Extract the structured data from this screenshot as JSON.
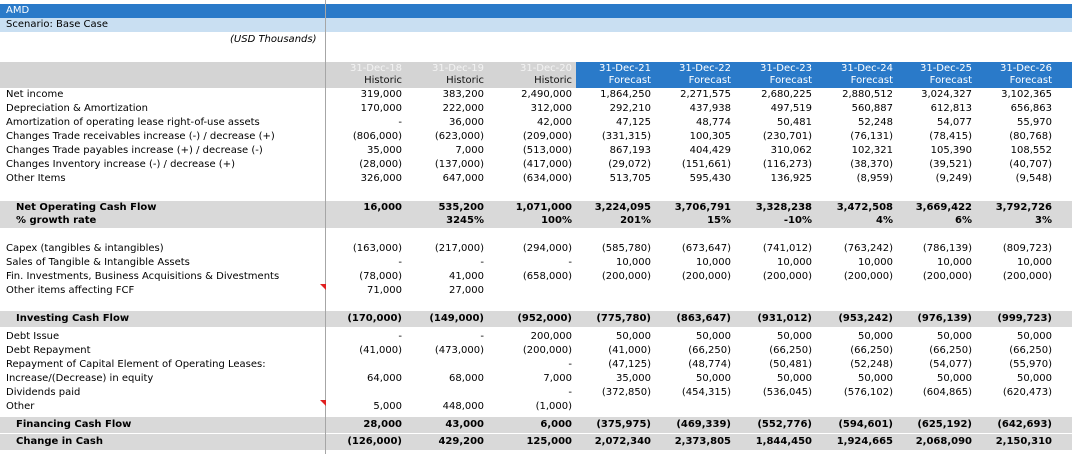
{
  "sheet": {
    "company": "AMD",
    "scenario": "Scenario: Base Case",
    "units": "(USD Thousands)"
  },
  "colors": {
    "title_bar": "#2a7ac9",
    "scenario_bar": "#c9dff2",
    "header_gray": "#d4d4d4",
    "forecast_blue": "#2a7ac9",
    "historic_text": "#f3f3f3",
    "total_band": "#d9d9d9",
    "comment_flag": "#e02020"
  },
  "columns": [
    {
      "date": "31-Dec-18",
      "kind": "Historic"
    },
    {
      "date": "31-Dec-19",
      "kind": "Historic"
    },
    {
      "date": "31-Dec-20",
      "kind": "Historic"
    },
    {
      "date": "31-Dec-21",
      "kind": "Forecast"
    },
    {
      "date": "31-Dec-22",
      "kind": "Forecast"
    },
    {
      "date": "31-Dec-23",
      "kind": "Forecast"
    },
    {
      "date": "31-Dec-24",
      "kind": "Forecast"
    },
    {
      "date": "31-Dec-25",
      "kind": "Forecast"
    },
    {
      "date": "31-Dec-26",
      "kind": "Forecast"
    }
  ],
  "rows": [
    {
      "label": "Net income",
      "values": [
        "319,000",
        "383,200",
        "2,490,000",
        "1,864,250",
        "2,271,575",
        "2,680,225",
        "2,880,512",
        "3,024,327",
        "3,102,365"
      ]
    },
    {
      "label": "Depreciation & Amortization",
      "values": [
        "170,000",
        "222,000",
        "312,000",
        "292,210",
        "437,938",
        "497,519",
        "560,887",
        "612,813",
        "656,863"
      ]
    },
    {
      "label": "Amortization of operating lease right-of-use assets",
      "values": [
        "-",
        "36,000",
        "42,000",
        "47,125",
        "48,774",
        "50,481",
        "52,248",
        "54,077",
        "55,970"
      ]
    },
    {
      "label": "Changes Trade receivables increase (-) / decrease (+)",
      "values": [
        "(806,000)",
        "(623,000)",
        "(209,000)",
        "(331,315)",
        "100,305",
        "(230,701)",
        "(76,131)",
        "(78,415)",
        "(80,768)"
      ]
    },
    {
      "label": "Changes Trade payables increase (+) / decrease (-)",
      "values": [
        "35,000",
        "7,000",
        "(513,000)",
        "867,193",
        "404,429",
        "310,062",
        "102,321",
        "105,390",
        "108,552"
      ]
    },
    {
      "label": "Changes Inventory increase (-) / decrease (+)",
      "values": [
        "(28,000)",
        "(137,000)",
        "(417,000)",
        "(29,072)",
        "(151,661)",
        "(116,273)",
        "(38,370)",
        "(39,521)",
        "(40,707)"
      ]
    },
    {
      "label": "Other Items",
      "values": [
        "326,000",
        "647,000",
        "(634,000)",
        "513,705",
        "595,430",
        "136,925",
        "(8,959)",
        "(9,249)",
        "(9,548)"
      ]
    },
    {
      "label": "Net Operating Cash Flow",
      "bold": true,
      "band": true,
      "values": [
        "16,000",
        "535,200",
        "1,071,000",
        "3,224,095",
        "3,706,791",
        "3,328,238",
        "3,472,508",
        "3,669,422",
        "3,792,726"
      ]
    },
    {
      "label": "% growth rate",
      "bold": true,
      "band": true,
      "values": [
        "",
        "3245%",
        "100%",
        "201%",
        "15%",
        "-10%",
        "4%",
        "6%",
        "3%"
      ]
    },
    {
      "label": "Capex (tangibles & intangibles)",
      "values": [
        "(163,000)",
        "(217,000)",
        "(294,000)",
        "(585,780)",
        "(673,647)",
        "(741,012)",
        "(763,242)",
        "(786,139)",
        "(809,723)"
      ]
    },
    {
      "label": "Sales of Tangible & Intangible Assets",
      "values": [
        "-",
        "-",
        "-",
        "10,000",
        "10,000",
        "10,000",
        "10,000",
        "10,000",
        "10,000"
      ]
    },
    {
      "label": "Fin. Investments, Business Acquisitions & Divestments",
      "values": [
        "(78,000)",
        "41,000",
        "(658,000)",
        "(200,000)",
        "(200,000)",
        "(200,000)",
        "(200,000)",
        "(200,000)",
        "(200,000)"
      ]
    },
    {
      "label": "Other items affecting FCF",
      "values": [
        "71,000",
        "27,000",
        "",
        "",
        "",
        "",
        "",
        "",
        ""
      ]
    },
    {
      "label": "Investing Cash Flow",
      "bold": true,
      "band": true,
      "values": [
        "(170,000)",
        "(149,000)",
        "(952,000)",
        "(775,780)",
        "(863,647)",
        "(931,012)",
        "(953,242)",
        "(976,139)",
        "(999,723)"
      ]
    },
    {
      "label": "Debt Issue",
      "values": [
        "-",
        "-",
        "200,000",
        "50,000",
        "50,000",
        "50,000",
        "50,000",
        "50,000",
        "50,000"
      ]
    },
    {
      "label": "Debt Repayment",
      "values": [
        "(41,000)",
        "(473,000)",
        "(200,000)",
        "(41,000)",
        "(66,250)",
        "(66,250)",
        "(66,250)",
        "(66,250)",
        "(66,250)"
      ]
    },
    {
      "label": "Repayment of Capital Element of Operating Leases:",
      "values": [
        "",
        "",
        "-",
        "(47,125)",
        "(48,774)",
        "(50,481)",
        "(52,248)",
        "(54,077)",
        "(55,970)"
      ]
    },
    {
      "label": "Increase/(Decrease) in equity",
      "values": [
        "64,000",
        "68,000",
        "7,000",
        "35,000",
        "50,000",
        "50,000",
        "50,000",
        "50,000",
        "50,000"
      ]
    },
    {
      "label": "Dividends paid",
      "values": [
        "",
        "",
        "-",
        "(372,850)",
        "(454,315)",
        "(536,045)",
        "(576,102)",
        "(604,865)",
        "(620,473)"
      ]
    },
    {
      "label": "Other",
      "values": [
        "5,000",
        "448,000",
        "(1,000)",
        "",
        "",
        "",
        "",
        "",
        ""
      ]
    },
    {
      "label": "Financing Cash Flow",
      "bold": true,
      "band": true,
      "values": [
        "28,000",
        "43,000",
        "6,000",
        "(375,975)",
        "(469,339)",
        "(552,776)",
        "(594,601)",
        "(625,192)",
        "(642,693)"
      ]
    },
    {
      "label": "Change in Cash",
      "bold": true,
      "band": true,
      "values": [
        "(126,000)",
        "429,200",
        "125,000",
        "2,072,340",
        "2,373,805",
        "1,844,450",
        "1,924,665",
        "2,068,090",
        "2,150,310"
      ]
    }
  ]
}
